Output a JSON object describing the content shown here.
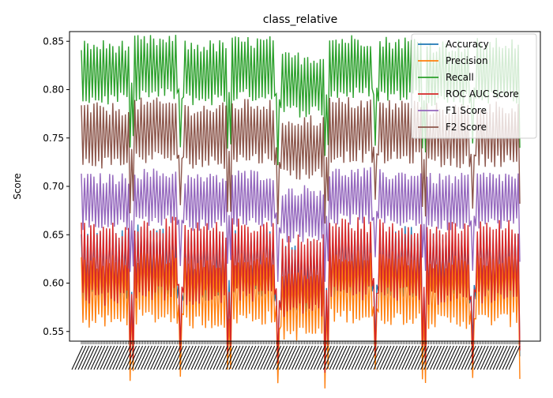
{
  "chart_data": {
    "type": "line",
    "title": "class_relative",
    "xlabel": "",
    "ylabel": "Score",
    "ylim": [
      0.54,
      0.86
    ],
    "yticks": [
      0.55,
      0.6,
      0.65,
      0.7,
      0.75,
      0.8,
      0.85
    ],
    "ytick_labels": [
      "0.55",
      "0.60",
      "0.65",
      "0.70",
      "0.75",
      "0.80",
      "0.85"
    ],
    "x_tick_labels_illegible": true,
    "legend_position": "upper right",
    "grid": false,
    "n_points": 280,
    "segments": 9,
    "series": [
      {
        "name": "Accuracy",
        "color": "#1f77b4",
        "low": 0.585,
        "high": 0.648
      },
      {
        "name": "Precision",
        "color": "#ff7f0e",
        "low": 0.56,
        "high": 0.622
      },
      {
        "name": "Recall",
        "color": "#2ca02c",
        "low": 0.79,
        "high": 0.845
      },
      {
        "name": "ROC AUC Score",
        "color": "#d62728",
        "low": 0.585,
        "high": 0.655
      },
      {
        "name": "F1 Score",
        "color": "#9467bd",
        "low": 0.66,
        "high": 0.708
      },
      {
        "name": "F2 Score",
        "color": "#8c564b",
        "low": 0.725,
        "high": 0.78
      }
    ]
  }
}
